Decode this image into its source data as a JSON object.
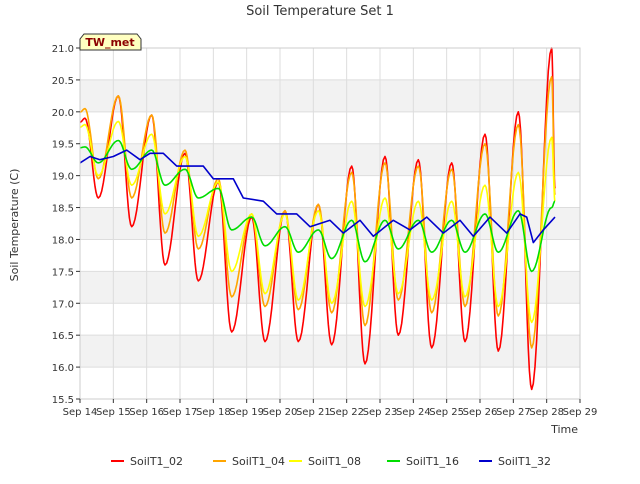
{
  "chart_data": {
    "type": "line",
    "title": "Soil Temperature Set 1",
    "xlabel": "Time",
    "ylabel": "Soil Temperature (C)",
    "badge": "TW_met",
    "ylim": [
      15.5,
      21.0
    ],
    "yticks": [
      "15.5",
      "16.0",
      "16.5",
      "17.0",
      "17.5",
      "18.0",
      "18.5",
      "19.0",
      "19.5",
      "20.0",
      "20.5",
      "21.0"
    ],
    "xlim": [
      "Sep 14",
      "Sep 29"
    ],
    "xticks": [
      "Sep 14",
      "Sep 15",
      "Sep 16",
      "Sep 17",
      "Sep 18",
      "Sep 19",
      "Sep 20",
      "Sep 21",
      "Sep 22",
      "Sep 23",
      "Sep 24",
      "Sep 25",
      "Sep 26",
      "Sep 27",
      "Sep 28",
      "Sep 29"
    ],
    "grid": true,
    "legend": "bottom",
    "series": [
      {
        "name": "SoilT1_02",
        "color": "#ff0000",
        "peaks": [
          19.9,
          20.25,
          19.95,
          19.35,
          18.9,
          18.35,
          18.45,
          18.55,
          19.15,
          19.3,
          19.25,
          19.2,
          19.65,
          20.0,
          21.0
        ],
        "troughs": [
          18.65,
          18.2,
          17.6,
          17.35,
          16.55,
          16.4,
          16.4,
          16.35,
          16.05,
          16.5,
          16.3,
          16.4,
          16.25,
          15.65
        ],
        "end": 18.8
      },
      {
        "name": "SoilT1_04",
        "color": "#ffa500",
        "peaks": [
          20.05,
          20.25,
          19.95,
          19.4,
          18.95,
          18.4,
          18.45,
          18.55,
          19.05,
          19.2,
          19.15,
          19.1,
          19.5,
          19.8,
          20.55
        ],
        "troughs": [
          18.95,
          18.65,
          18.1,
          17.85,
          17.1,
          16.95,
          16.9,
          16.85,
          16.65,
          17.05,
          16.85,
          16.95,
          16.8,
          16.3
        ],
        "end": 18.7
      },
      {
        "name": "SoilT1_08",
        "color": "#ffff00",
        "peaks": [
          19.8,
          19.85,
          19.65,
          19.3,
          18.9,
          18.4,
          18.4,
          18.45,
          18.6,
          18.65,
          18.6,
          18.6,
          18.85,
          19.05,
          19.6
        ],
        "troughs": [
          19.0,
          18.85,
          18.4,
          18.05,
          17.5,
          17.15,
          17.05,
          17.0,
          16.95,
          17.15,
          17.05,
          17.1,
          16.95,
          16.7
        ],
        "end": 18.6
      },
      {
        "name": "SoilT1_16",
        "color": "#00dd00",
        "peaks": [
          19.45,
          19.55,
          19.4,
          19.1,
          18.8,
          18.35,
          18.2,
          18.15,
          18.3,
          18.3,
          18.3,
          18.3,
          18.4,
          18.45,
          18.5
        ],
        "troughs": [
          19.2,
          19.1,
          18.85,
          18.65,
          18.15,
          17.9,
          17.8,
          17.7,
          17.65,
          17.85,
          17.8,
          17.8,
          17.8,
          17.5
        ],
        "end": 18.6
      },
      {
        "name": "SoilT1_32",
        "color": "#0000cc",
        "points": [
          [
            14.0,
            19.2
          ],
          [
            14.3,
            19.3
          ],
          [
            14.6,
            19.25
          ],
          [
            15.0,
            19.3
          ],
          [
            15.4,
            19.4
          ],
          [
            15.8,
            19.25
          ],
          [
            16.1,
            19.35
          ],
          [
            16.5,
            19.35
          ],
          [
            16.9,
            19.15
          ],
          [
            17.4,
            19.15
          ],
          [
            17.7,
            19.15
          ],
          [
            18.0,
            18.95
          ],
          [
            18.6,
            18.95
          ],
          [
            18.9,
            18.65
          ],
          [
            19.5,
            18.6
          ],
          [
            19.9,
            18.4
          ],
          [
            20.5,
            18.4
          ],
          [
            20.9,
            18.2
          ],
          [
            21.5,
            18.3
          ],
          [
            21.9,
            18.1
          ],
          [
            22.4,
            18.3
          ],
          [
            22.8,
            18.05
          ],
          [
            23.4,
            18.3
          ],
          [
            23.9,
            18.15
          ],
          [
            24.4,
            18.35
          ],
          [
            24.9,
            18.1
          ],
          [
            25.4,
            18.3
          ],
          [
            25.8,
            18.05
          ],
          [
            26.3,
            18.35
          ],
          [
            26.8,
            18.1
          ],
          [
            27.2,
            18.4
          ],
          [
            27.4,
            18.35
          ],
          [
            27.6,
            17.95
          ],
          [
            27.9,
            18.15
          ],
          [
            28.25,
            18.35
          ]
        ]
      }
    ]
  }
}
